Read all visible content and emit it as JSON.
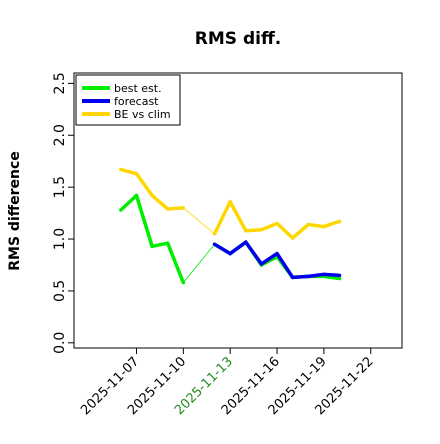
{
  "chart_data": {
    "type": "line",
    "title": "RMS diff.",
    "ylabel": "RMS difference",
    "xlabel": "",
    "ylim": [
      -0.05,
      2.6
    ],
    "xlim": [
      "2025-11-03",
      "2025-11-24"
    ],
    "yticks": [
      0.0,
      0.5,
      1.0,
      1.5,
      2.0,
      2.5
    ],
    "ytick_labels": [
      "0.0",
      "0.5",
      "1.0",
      "1.5",
      "2.0",
      "2.5"
    ],
    "xticks": [
      "2025-11-07",
      "2025-11-10",
      "2025-11-13",
      "2025-11-16",
      "2025-11-19",
      "2025-11-22"
    ],
    "xtick_labels": [
      "2025-11-07",
      "2025-11-10",
      "2025-11-13",
      "2025-11-16",
      "2025-11-19",
      "2025-11-22"
    ],
    "highlight_tick": "2025-11-13",
    "highlight_color": "#228B22",
    "gap_segment": [
      "2025-11-10",
      "2025-11-12"
    ],
    "legend_position": "top-left",
    "grid": false,
    "series": [
      {
        "name": "best est.",
        "color": "#00ee00",
        "points": [
          [
            "2025-11-06",
            1.28
          ],
          [
            "2025-11-07",
            1.42
          ],
          [
            "2025-11-08",
            0.93
          ],
          [
            "2025-11-09",
            0.96
          ],
          [
            "2025-11-10",
            0.58
          ],
          [
            "2025-11-12",
            0.95
          ],
          [
            "2025-11-13",
            0.86
          ],
          [
            "2025-11-14",
            0.97
          ],
          [
            "2025-11-15",
            0.75
          ],
          [
            "2025-11-16",
            0.83
          ],
          [
            "2025-11-17",
            0.63
          ],
          [
            "2025-11-18",
            0.64
          ],
          [
            "2025-11-19",
            0.64
          ],
          [
            "2025-11-20",
            0.62
          ]
        ]
      },
      {
        "name": "forecast",
        "color": "#0000ee",
        "points": [
          [
            "2025-11-12",
            0.95
          ],
          [
            "2025-11-13",
            0.86
          ],
          [
            "2025-11-14",
            0.97
          ],
          [
            "2025-11-15",
            0.76
          ],
          [
            "2025-11-16",
            0.86
          ],
          [
            "2025-11-17",
            0.63
          ],
          [
            "2025-11-18",
            0.64
          ],
          [
            "2025-11-19",
            0.66
          ],
          [
            "2025-11-20",
            0.65
          ]
        ]
      },
      {
        "name": "BE vs clim",
        "color": "#ffd700",
        "points": [
          [
            "2025-11-06",
            1.67
          ],
          [
            "2025-11-07",
            1.63
          ],
          [
            "2025-11-08",
            1.42
          ],
          [
            "2025-11-09",
            1.29
          ],
          [
            "2025-11-10",
            1.3
          ],
          [
            "2025-11-12",
            1.05
          ],
          [
            "2025-11-13",
            1.36
          ],
          [
            "2025-11-14",
            1.08
          ],
          [
            "2025-11-15",
            1.09
          ],
          [
            "2025-11-16",
            1.15
          ],
          [
            "2025-11-17",
            1.01
          ],
          [
            "2025-11-18",
            1.14
          ],
          [
            "2025-11-19",
            1.12
          ],
          [
            "2025-11-20",
            1.17
          ]
        ]
      }
    ]
  }
}
